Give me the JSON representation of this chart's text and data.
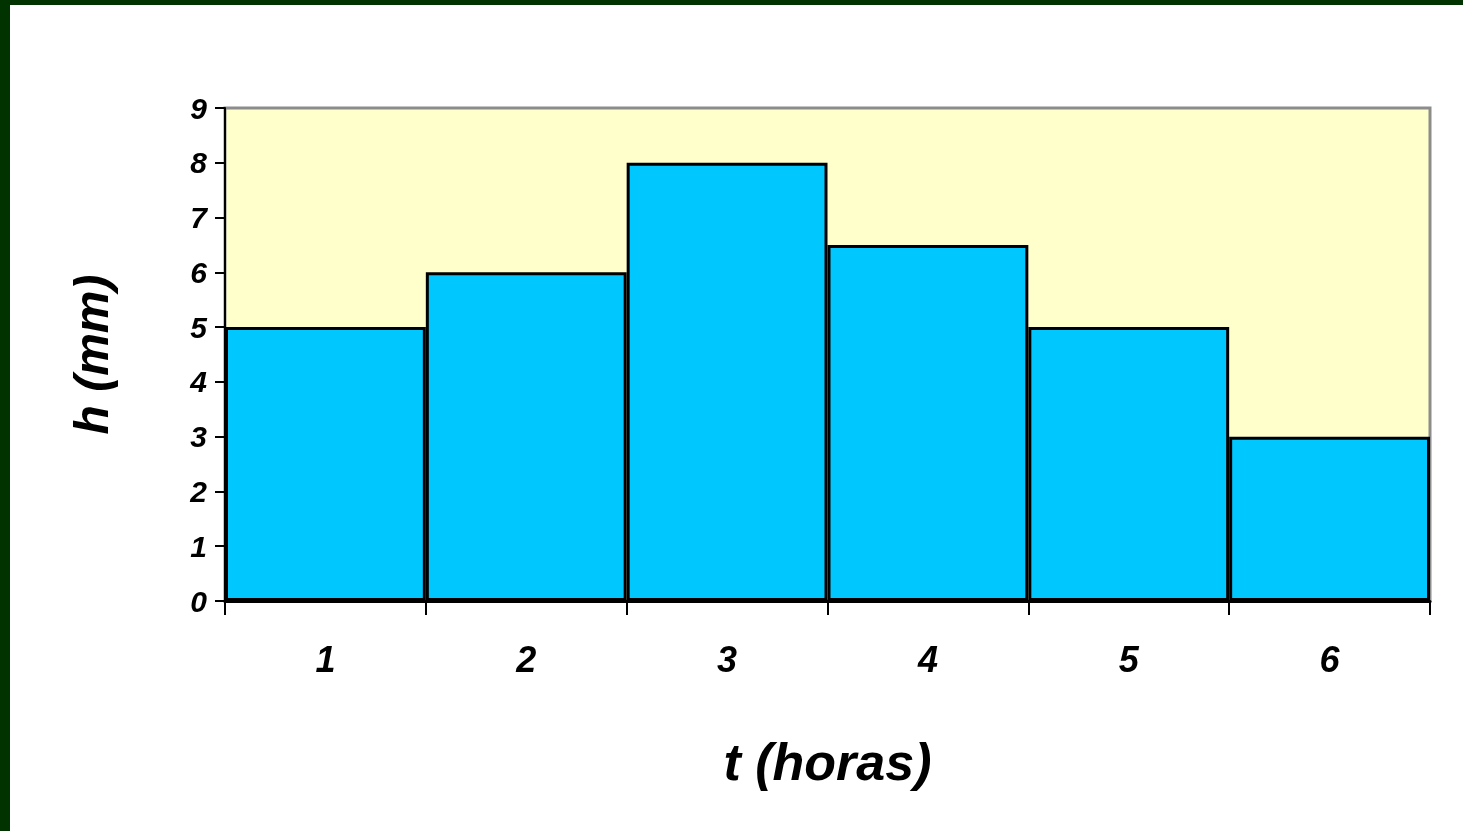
{
  "chart_data": {
    "type": "bar",
    "xlabel": "t (horas)",
    "ylabel": "h (mm)",
    "categories": [
      "1",
      "2",
      "3",
      "4",
      "5",
      "6"
    ],
    "values": [
      5,
      6,
      8,
      6.5,
      5,
      3
    ],
    "color": "#00c8ff",
    "bands": [
      {
        "axis": "y",
        "from": 0,
        "to": 9,
        "color": "#ffffcc"
      }
    ],
    "ylim": [
      0,
      9
    ],
    "yticks": [
      0,
      1,
      2,
      3,
      4,
      5,
      6,
      7,
      8,
      9
    ],
    "grid": false
  }
}
